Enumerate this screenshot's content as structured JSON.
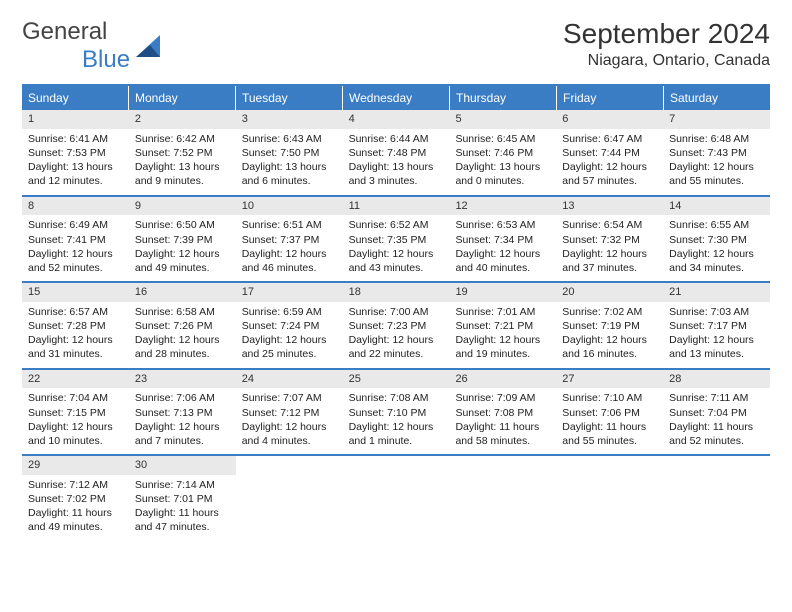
{
  "logo": {
    "general": "General",
    "blue": "Blue"
  },
  "title": "September 2024",
  "location": "Niagara, Ontario, Canada",
  "colors": {
    "header_bg": "#3b7dc4",
    "header_text": "#ffffff",
    "daynum_bg": "#e9e9e9",
    "rule": "#3b7dc4",
    "text": "#222222",
    "background": "#ffffff"
  },
  "days_of_week": [
    "Sunday",
    "Monday",
    "Tuesday",
    "Wednesday",
    "Thursday",
    "Friday",
    "Saturday"
  ],
  "weeks": [
    [
      {
        "n": "1",
        "sr": "Sunrise: 6:41 AM",
        "ss": "Sunset: 7:53 PM",
        "dl": "Daylight: 13 hours and 12 minutes."
      },
      {
        "n": "2",
        "sr": "Sunrise: 6:42 AM",
        "ss": "Sunset: 7:52 PM",
        "dl": "Daylight: 13 hours and 9 minutes."
      },
      {
        "n": "3",
        "sr": "Sunrise: 6:43 AM",
        "ss": "Sunset: 7:50 PM",
        "dl": "Daylight: 13 hours and 6 minutes."
      },
      {
        "n": "4",
        "sr": "Sunrise: 6:44 AM",
        "ss": "Sunset: 7:48 PM",
        "dl": "Daylight: 13 hours and 3 minutes."
      },
      {
        "n": "5",
        "sr": "Sunrise: 6:45 AM",
        "ss": "Sunset: 7:46 PM",
        "dl": "Daylight: 13 hours and 0 minutes."
      },
      {
        "n": "6",
        "sr": "Sunrise: 6:47 AM",
        "ss": "Sunset: 7:44 PM",
        "dl": "Daylight: 12 hours and 57 minutes."
      },
      {
        "n": "7",
        "sr": "Sunrise: 6:48 AM",
        "ss": "Sunset: 7:43 PM",
        "dl": "Daylight: 12 hours and 55 minutes."
      }
    ],
    [
      {
        "n": "8",
        "sr": "Sunrise: 6:49 AM",
        "ss": "Sunset: 7:41 PM",
        "dl": "Daylight: 12 hours and 52 minutes."
      },
      {
        "n": "9",
        "sr": "Sunrise: 6:50 AM",
        "ss": "Sunset: 7:39 PM",
        "dl": "Daylight: 12 hours and 49 minutes."
      },
      {
        "n": "10",
        "sr": "Sunrise: 6:51 AM",
        "ss": "Sunset: 7:37 PM",
        "dl": "Daylight: 12 hours and 46 minutes."
      },
      {
        "n": "11",
        "sr": "Sunrise: 6:52 AM",
        "ss": "Sunset: 7:35 PM",
        "dl": "Daylight: 12 hours and 43 minutes."
      },
      {
        "n": "12",
        "sr": "Sunrise: 6:53 AM",
        "ss": "Sunset: 7:34 PM",
        "dl": "Daylight: 12 hours and 40 minutes."
      },
      {
        "n": "13",
        "sr": "Sunrise: 6:54 AM",
        "ss": "Sunset: 7:32 PM",
        "dl": "Daylight: 12 hours and 37 minutes."
      },
      {
        "n": "14",
        "sr": "Sunrise: 6:55 AM",
        "ss": "Sunset: 7:30 PM",
        "dl": "Daylight: 12 hours and 34 minutes."
      }
    ],
    [
      {
        "n": "15",
        "sr": "Sunrise: 6:57 AM",
        "ss": "Sunset: 7:28 PM",
        "dl": "Daylight: 12 hours and 31 minutes."
      },
      {
        "n": "16",
        "sr": "Sunrise: 6:58 AM",
        "ss": "Sunset: 7:26 PM",
        "dl": "Daylight: 12 hours and 28 minutes."
      },
      {
        "n": "17",
        "sr": "Sunrise: 6:59 AM",
        "ss": "Sunset: 7:24 PM",
        "dl": "Daylight: 12 hours and 25 minutes."
      },
      {
        "n": "18",
        "sr": "Sunrise: 7:00 AM",
        "ss": "Sunset: 7:23 PM",
        "dl": "Daylight: 12 hours and 22 minutes."
      },
      {
        "n": "19",
        "sr": "Sunrise: 7:01 AM",
        "ss": "Sunset: 7:21 PM",
        "dl": "Daylight: 12 hours and 19 minutes."
      },
      {
        "n": "20",
        "sr": "Sunrise: 7:02 AM",
        "ss": "Sunset: 7:19 PM",
        "dl": "Daylight: 12 hours and 16 minutes."
      },
      {
        "n": "21",
        "sr": "Sunrise: 7:03 AM",
        "ss": "Sunset: 7:17 PM",
        "dl": "Daylight: 12 hours and 13 minutes."
      }
    ],
    [
      {
        "n": "22",
        "sr": "Sunrise: 7:04 AM",
        "ss": "Sunset: 7:15 PM",
        "dl": "Daylight: 12 hours and 10 minutes."
      },
      {
        "n": "23",
        "sr": "Sunrise: 7:06 AM",
        "ss": "Sunset: 7:13 PM",
        "dl": "Daylight: 12 hours and 7 minutes."
      },
      {
        "n": "24",
        "sr": "Sunrise: 7:07 AM",
        "ss": "Sunset: 7:12 PM",
        "dl": "Daylight: 12 hours and 4 minutes."
      },
      {
        "n": "25",
        "sr": "Sunrise: 7:08 AM",
        "ss": "Sunset: 7:10 PM",
        "dl": "Daylight: 12 hours and 1 minute."
      },
      {
        "n": "26",
        "sr": "Sunrise: 7:09 AM",
        "ss": "Sunset: 7:08 PM",
        "dl": "Daylight: 11 hours and 58 minutes."
      },
      {
        "n": "27",
        "sr": "Sunrise: 7:10 AM",
        "ss": "Sunset: 7:06 PM",
        "dl": "Daylight: 11 hours and 55 minutes."
      },
      {
        "n": "28",
        "sr": "Sunrise: 7:11 AM",
        "ss": "Sunset: 7:04 PM",
        "dl": "Daylight: 11 hours and 52 minutes."
      }
    ],
    [
      {
        "n": "29",
        "sr": "Sunrise: 7:12 AM",
        "ss": "Sunset: 7:02 PM",
        "dl": "Daylight: 11 hours and 49 minutes."
      },
      {
        "n": "30",
        "sr": "Sunrise: 7:14 AM",
        "ss": "Sunset: 7:01 PM",
        "dl": "Daylight: 11 hours and 47 minutes."
      },
      {
        "empty": true
      },
      {
        "empty": true
      },
      {
        "empty": true
      },
      {
        "empty": true
      },
      {
        "empty": true
      }
    ]
  ]
}
